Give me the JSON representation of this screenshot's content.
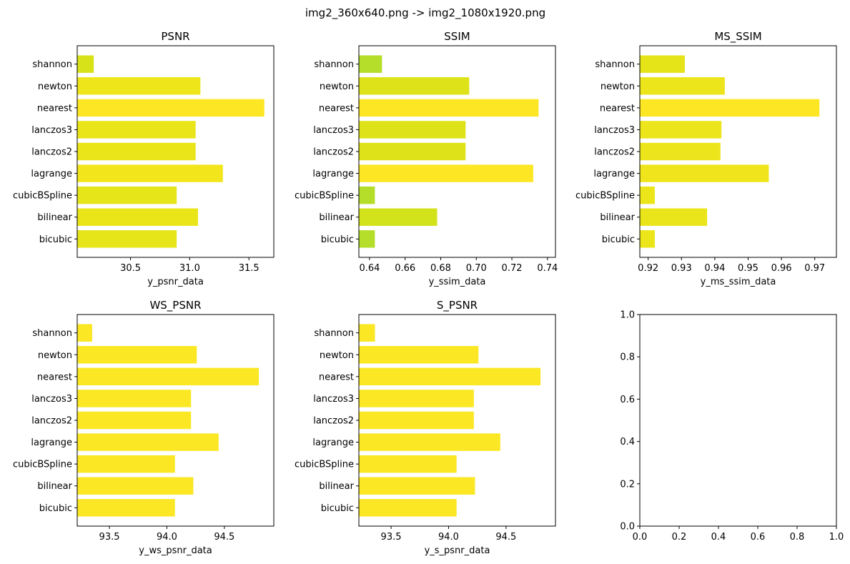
{
  "figure": {
    "suptitle": "img2_360x640.png -> img2_1080x1920.png"
  },
  "chart_data": [
    {
      "type": "bar",
      "orientation": "horizontal",
      "title": "PSNR",
      "xlabel": "y_psnr_data",
      "ylabel": "",
      "categories": [
        "bicubic",
        "bilinear",
        "cubicBSpline",
        "lagrange",
        "lanczos2",
        "lanczos3",
        "nearest",
        "newton",
        "shannon"
      ],
      "values": [
        30.89,
        31.07,
        30.89,
        31.28,
        31.05,
        31.05,
        31.63,
        31.09,
        30.19
      ],
      "colors": [
        "#e6e51a",
        "#e9e519",
        "#e6e51a",
        "#f2e51c",
        "#e9e519",
        "#e9e519",
        "#fde725",
        "#efe51b",
        "#d8e219"
      ],
      "xlim": [
        30.05,
        31.71
      ],
      "xticks": [
        30.5,
        31.0,
        31.5
      ],
      "xtick_labels": [
        "30.5",
        "31.0",
        "31.5"
      ],
      "grid": false
    },
    {
      "type": "bar",
      "orientation": "horizontal",
      "title": "SSIM",
      "xlabel": "y_ssim_data",
      "ylabel": "",
      "categories": [
        "bicubic",
        "bilinear",
        "cubicBSpline",
        "lagrange",
        "lanczos2",
        "lanczos3",
        "nearest",
        "newton",
        "shannon"
      ],
      "values": [
        0.643,
        0.678,
        0.643,
        0.732,
        0.694,
        0.694,
        0.735,
        0.696,
        0.647
      ],
      "colors": [
        "#b5de2b",
        "#d2e21b",
        "#b5de2b",
        "#fde725",
        "#dde318",
        "#dde318",
        "#fde725",
        "#dde318",
        "#b5de2b"
      ],
      "xlim": [
        0.634,
        0.7445
      ],
      "xticks": [
        0.64,
        0.66,
        0.68,
        0.7,
        0.72,
        0.74
      ],
      "xtick_labels": [
        "0.64",
        "0.66",
        "0.68",
        "0.70",
        "0.72",
        "0.74"
      ],
      "grid": false
    },
    {
      "type": "bar",
      "orientation": "horizontal",
      "title": "MS_SSIM",
      "xlabel": "y_ms_ssim_data",
      "ylabel": "",
      "categories": [
        "bicubic",
        "bilinear",
        "cubicBSpline",
        "lagrange",
        "lanczos2",
        "lanczos3",
        "nearest",
        "newton",
        "shannon"
      ],
      "values": [
        0.922,
        0.9377,
        0.922,
        0.9562,
        0.9417,
        0.942,
        0.9714,
        0.943,
        0.931
      ],
      "colors": [
        "#ebe51a",
        "#eae51a",
        "#ebe51a",
        "#f0e51c",
        "#ece51b",
        "#ece51b",
        "#fde725",
        "#ece51b",
        "#e5e419"
      ],
      "xlim": [
        0.9175,
        0.9765
      ],
      "xticks": [
        0.92,
        0.93,
        0.94,
        0.95,
        0.96,
        0.97
      ],
      "xtick_labels": [
        "0.92",
        "0.93",
        "0.94",
        "0.95",
        "0.96",
        "0.97"
      ],
      "grid": false
    },
    {
      "type": "bar",
      "orientation": "horizontal",
      "title": "WS_PSNR",
      "xlabel": "y_ws_psnr_data",
      "ylabel": "",
      "categories": [
        "bicubic",
        "bilinear",
        "cubicBSpline",
        "lagrange",
        "lanczos2",
        "lanczos3",
        "nearest",
        "newton",
        "shannon"
      ],
      "values": [
        94.07,
        94.23,
        94.07,
        94.45,
        94.21,
        94.21,
        94.8,
        94.26,
        93.35
      ],
      "colors": [
        "#fbe723",
        "#fbe723",
        "#fbe723",
        "#fbe723",
        "#fbe723",
        "#fbe723",
        "#fbe723",
        "#fbe723",
        "#fbe723"
      ],
      "xlim": [
        93.22,
        94.93
      ],
      "xticks": [
        93.5,
        94.0,
        94.5
      ],
      "xtick_labels": [
        "93.5",
        "94.0",
        "94.5"
      ],
      "grid": false
    },
    {
      "type": "bar",
      "orientation": "horizontal",
      "title": "S_PSNR",
      "xlabel": "y_s_psnr_data",
      "ylabel": "",
      "categories": [
        "bicubic",
        "bilinear",
        "cubicBSpline",
        "lagrange",
        "lanczos2",
        "lanczos3",
        "nearest",
        "newton",
        "shannon"
      ],
      "values": [
        94.07,
        94.23,
        94.07,
        94.45,
        94.22,
        94.22,
        94.8,
        94.26,
        93.36
      ],
      "colors": [
        "#fbe723",
        "#fbe723",
        "#fbe723",
        "#fbe723",
        "#fbe723",
        "#fbe723",
        "#fbe723",
        "#fbe723",
        "#fbe723"
      ],
      "xlim": [
        93.22,
        94.93
      ],
      "xticks": [
        93.5,
        94.0,
        94.5
      ],
      "xtick_labels": [
        "93.5",
        "94.0",
        "94.5"
      ],
      "grid": false
    },
    {
      "type": "empty",
      "title": "",
      "xlim": [
        0,
        1
      ],
      "ylim": [
        0,
        1
      ],
      "xticks": [
        0,
        0.2,
        0.4,
        0.6,
        0.8,
        1.0
      ],
      "xtick_labels": [
        "0.0",
        "0.2",
        "0.4",
        "0.6",
        "0.8",
        "1.0"
      ],
      "yticks": [
        0,
        0.2,
        0.4,
        0.6,
        0.8,
        1.0
      ],
      "ytick_labels": [
        "0.0",
        "0.2",
        "0.4",
        "0.6",
        "0.8",
        "1.0"
      ],
      "grid": false
    }
  ]
}
